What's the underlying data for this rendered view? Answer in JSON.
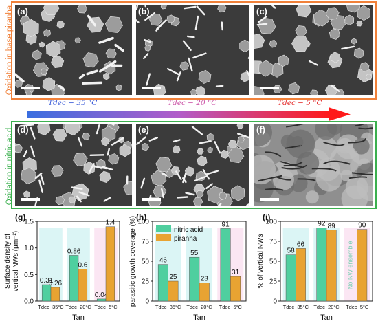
{
  "figure": {
    "groups": {
      "top": {
        "label": "Oxidation in base piranha",
        "color": "#f0813a"
      },
      "bottom": {
        "label": "Oxidation in nitric acid",
        "color": "#3cb04f"
      }
    },
    "panels_top": [
      {
        "tag": "(a)",
        "kind": "hex-rods"
      },
      {
        "tag": "(b)",
        "kind": "sparse-wires"
      },
      {
        "tag": "(c)",
        "kind": "hex-dense"
      }
    ],
    "panels_bottom": [
      {
        "tag": "(d)",
        "kind": "hex-wires"
      },
      {
        "tag": "(e)",
        "kind": "hex-wires-dense"
      },
      {
        "tag": "(f)",
        "kind": "rough-film"
      }
    ],
    "temperature_arrow": {
      "labels": [
        {
          "text": "Tdec − 35 °C",
          "color": "#3a5bd8"
        },
        {
          "text": "Tdec − 20 °C",
          "color": "#cc55a8"
        },
        {
          "text": "Tdec − 5 °C",
          "color": "#e53030"
        }
      ],
      "colors": {
        "start": "#3a6ee0",
        "end": "#ff1a1a"
      }
    }
  },
  "chart_data": [
    {
      "panel": "(g)",
      "type": "bar",
      "categories": [
        "Tdec−35°C",
        "Tdec−20°C",
        "Tdec−5°C"
      ],
      "series": [
        {
          "name": "nitric acid",
          "values": [
            0.31,
            0.86,
            0.04
          ],
          "labels": [
            "0.31",
            "0.86",
            "0.04"
          ]
        },
        {
          "name": "piranha",
          "values": [
            0.26,
            0.6,
            1.4
          ],
          "labels": [
            "0.26",
            "0.6",
            "1.4"
          ]
        }
      ],
      "ylabel_lines": [
        "Surface density of",
        "vertical NWs (µm⁻²)"
      ],
      "xlabel": "Tan",
      "ylim": [
        0,
        1.5
      ],
      "yticks": [
        "0.0",
        "0.5",
        "1.0",
        "1.5"
      ],
      "ytick_values": [
        0,
        0.5,
        1.0,
        1.5
      ]
    },
    {
      "panel": "(h)",
      "type": "bar",
      "categories": [
        "Tdec−35°C",
        "Tdec−20°C",
        "Tdec−5°C"
      ],
      "series": [
        {
          "name": "nitric acid",
          "values": [
            46,
            55,
            91
          ],
          "labels": [
            "46",
            "55",
            "91"
          ]
        },
        {
          "name": "piranha",
          "values": [
            25,
            23,
            31
          ],
          "labels": [
            "25",
            "23",
            "31"
          ]
        }
      ],
      "ylabel": "parasitic growth coverage (%)",
      "xlabel": "Tan",
      "ylim": [
        0,
        100
      ],
      "yticks": [
        "0",
        "25",
        "50",
        "75",
        "100"
      ],
      "ytick_values": [
        0,
        25,
        50,
        75,
        100
      ],
      "legend": {
        "placement": "top-left",
        "entries": [
          "nitric acid",
          "piranha"
        ]
      }
    },
    {
      "panel": "(i)",
      "type": "bar",
      "categories": [
        "Tdec−35°C",
        "Tdec−20°C",
        "Tdec−5°C"
      ],
      "series": [
        {
          "name": "nitric acid",
          "values": [
            58,
            92,
            null
          ],
          "labels": [
            "58",
            "92",
            ""
          ]
        },
        {
          "name": "piranha",
          "values": [
            66,
            89,
            90
          ],
          "labels": [
            "66",
            "89",
            "90"
          ]
        }
      ],
      "ylabel": "% of vertical NWs",
      "xlabel": "Tan",
      "ylim": [
        0,
        100
      ],
      "yticks": [
        "0",
        "25",
        "50",
        "75",
        "100"
      ],
      "ytick_values": [
        0,
        25,
        50,
        75,
        100
      ],
      "annotation": "No NW ensemble"
    }
  ],
  "colors": {
    "nitric": "#4fcf9f",
    "piranha": "#e8a332",
    "band_blue": "#d7f4f4",
    "band_pink": "#fbe3f2",
    "sem_bg": "#3b3b3b"
  }
}
